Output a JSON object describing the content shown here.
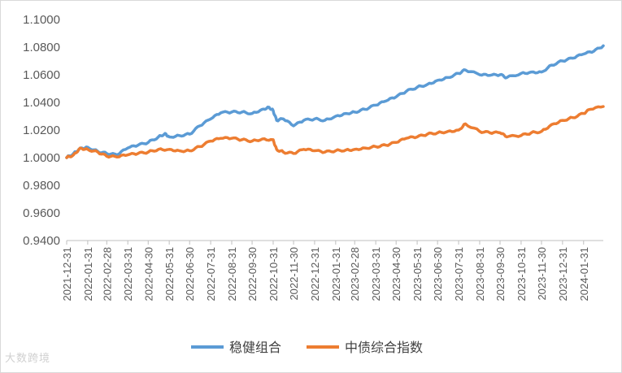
{
  "watermark": "大数跨境",
  "chart_data": {
    "type": "line",
    "title": "",
    "xlabel": "",
    "ylabel": "",
    "ylim": [
      0.94,
      1.1
    ],
    "yticks": [
      "1.1000",
      "1.0800",
      "1.0600",
      "1.0400",
      "1.0200",
      "1.0000",
      "0.9800",
      "0.9600",
      "0.9400"
    ],
    "x_tick_labels": [
      "2021-12-31",
      "2022-01-31",
      "2022-02-28",
      "2022-03-31",
      "2022-04-30",
      "2022-05-31",
      "2022-06-30",
      "2022-07-31",
      "2022-08-31",
      "2022-09-30",
      "2022-10-31",
      "2022-11-30",
      "2022-12-31",
      "2023-01-31",
      "2023-02-28",
      "2023-03-31",
      "2023-04-30",
      "2023-05-31",
      "2023-06-30",
      "2023-07-31",
      "2023-08-31",
      "2023-09-30",
      "2023-10-31",
      "2023-11-30",
      "2023-12-31",
      "2024-01-31"
    ],
    "x_end": "2024-02-29",
    "grid": false,
    "legend_position": "bottom",
    "series": [
      {
        "name": "稳健组合",
        "color": "#5b9bd5",
        "points": [
          [
            "2021-12-31",
            1.0
          ],
          [
            "2022-01-10",
            1.003
          ],
          [
            "2022-01-20",
            1.007
          ],
          [
            "2022-01-31",
            1.0075
          ],
          [
            "2022-02-15",
            1.0045
          ],
          [
            "2022-02-28",
            1.003
          ],
          [
            "2022-03-15",
            1.002
          ],
          [
            "2022-03-31",
            1.007
          ],
          [
            "2022-04-15",
            1.009
          ],
          [
            "2022-04-30",
            1.011
          ],
          [
            "2022-05-15",
            1.015
          ],
          [
            "2022-05-25",
            1.0175
          ],
          [
            "2022-05-31",
            1.015
          ],
          [
            "2022-06-15",
            1.016
          ],
          [
            "2022-06-30",
            1.017
          ],
          [
            "2022-07-15",
            1.023
          ],
          [
            "2022-07-31",
            1.028
          ],
          [
            "2022-08-15",
            1.0325
          ],
          [
            "2022-08-31",
            1.033
          ],
          [
            "2022-09-15",
            1.033
          ],
          [
            "2022-09-30",
            1.032
          ],
          [
            "2022-10-15",
            1.035
          ],
          [
            "2022-10-25",
            1.0365
          ],
          [
            "2022-10-31",
            1.034
          ],
          [
            "2022-11-05",
            1.027
          ],
          [
            "2022-11-15",
            1.028
          ],
          [
            "2022-11-30",
            1.023
          ],
          [
            "2022-12-15",
            1.027
          ],
          [
            "2022-12-31",
            1.028
          ],
          [
            "2023-01-15",
            1.027
          ],
          [
            "2023-01-31",
            1.03
          ],
          [
            "2023-02-15",
            1.032
          ],
          [
            "2023-02-28",
            1.033
          ],
          [
            "2023-03-15",
            1.035
          ],
          [
            "2023-03-31",
            1.038
          ],
          [
            "2023-04-15",
            1.041
          ],
          [
            "2023-04-30",
            1.044
          ],
          [
            "2023-05-15",
            1.048
          ],
          [
            "2023-05-31",
            1.051
          ],
          [
            "2023-06-15",
            1.053
          ],
          [
            "2023-06-30",
            1.056
          ],
          [
            "2023-07-15",
            1.058
          ],
          [
            "2023-07-31",
            1.061
          ],
          [
            "2023-08-10",
            1.0635
          ],
          [
            "2023-08-31",
            1.06
          ],
          [
            "2023-09-15",
            1.0595
          ],
          [
            "2023-09-30",
            1.06
          ],
          [
            "2023-10-10",
            1.058
          ],
          [
            "2023-10-31",
            1.061
          ],
          [
            "2023-11-15",
            1.062
          ],
          [
            "2023-11-30",
            1.062
          ],
          [
            "2023-12-15",
            1.067
          ],
          [
            "2023-12-31",
            1.07
          ],
          [
            "2024-01-15",
            1.072
          ],
          [
            "2024-01-31",
            1.075
          ],
          [
            "2024-02-15",
            1.077
          ],
          [
            "2024-02-29",
            1.081
          ]
        ]
      },
      {
        "name": "中债综合指数",
        "color": "#ed7d31",
        "points": [
          [
            "2021-12-31",
            1.0
          ],
          [
            "2022-01-10",
            1.002
          ],
          [
            "2022-01-20",
            1.007
          ],
          [
            "2022-01-31",
            1.006
          ],
          [
            "2022-02-15",
            1.004
          ],
          [
            "2022-02-28",
            1.001
          ],
          [
            "2022-03-15",
            1.0005
          ],
          [
            "2022-03-31",
            1.002
          ],
          [
            "2022-04-15",
            1.003
          ],
          [
            "2022-04-30",
            1.004
          ],
          [
            "2022-05-15",
            1.006
          ],
          [
            "2022-05-31",
            1.006
          ],
          [
            "2022-06-15",
            1.005
          ],
          [
            "2022-06-30",
            1.005
          ],
          [
            "2022-07-15",
            1.008
          ],
          [
            "2022-07-31",
            1.012
          ],
          [
            "2022-08-15",
            1.014
          ],
          [
            "2022-08-31",
            1.014
          ],
          [
            "2022-09-15",
            1.013
          ],
          [
            "2022-09-30",
            1.012
          ],
          [
            "2022-10-15",
            1.0135
          ],
          [
            "2022-10-31",
            1.013
          ],
          [
            "2022-11-05",
            1.006
          ],
          [
            "2022-11-15",
            1.004
          ],
          [
            "2022-11-30",
            1.003
          ],
          [
            "2022-12-15",
            1.006
          ],
          [
            "2022-12-31",
            1.005
          ],
          [
            "2023-01-15",
            1.004
          ],
          [
            "2023-01-31",
            1.005
          ],
          [
            "2023-02-15",
            1.0055
          ],
          [
            "2023-02-28",
            1.006
          ],
          [
            "2023-03-15",
            1.007
          ],
          [
            "2023-03-31",
            1.008
          ],
          [
            "2023-04-15",
            1.009
          ],
          [
            "2023-04-30",
            1.011
          ],
          [
            "2023-05-15",
            1.014
          ],
          [
            "2023-05-31",
            1.015
          ],
          [
            "2023-06-15",
            1.017
          ],
          [
            "2023-06-30",
            1.018
          ],
          [
            "2023-07-15",
            1.019
          ],
          [
            "2023-07-31",
            1.02
          ],
          [
            "2023-08-10",
            1.0245
          ],
          [
            "2023-08-31",
            1.019
          ],
          [
            "2023-09-15",
            1.018
          ],
          [
            "2023-09-30",
            1.018
          ],
          [
            "2023-10-10",
            1.015
          ],
          [
            "2023-10-31",
            1.016
          ],
          [
            "2023-11-15",
            1.018
          ],
          [
            "2023-11-30",
            1.019
          ],
          [
            "2023-12-15",
            1.024
          ],
          [
            "2023-12-31",
            1.027
          ],
          [
            "2024-01-15",
            1.029
          ],
          [
            "2024-01-31",
            1.032
          ],
          [
            "2024-02-10",
            1.035
          ],
          [
            "2024-02-29",
            1.037
          ]
        ]
      }
    ]
  }
}
